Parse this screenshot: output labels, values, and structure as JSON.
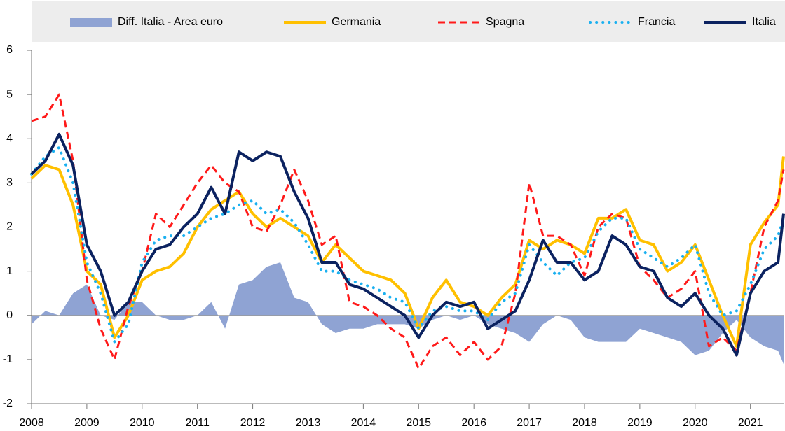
{
  "chart_data": {
    "type": "line",
    "x": [
      2008,
      2008.25,
      2008.5,
      2008.75,
      2009,
      2009.25,
      2009.5,
      2009.75,
      2010,
      2010.25,
      2010.5,
      2010.75,
      2011,
      2011.25,
      2011.5,
      2011.75,
      2012,
      2012.25,
      2012.5,
      2012.75,
      2013,
      2013.25,
      2013.5,
      2013.75,
      2014,
      2014.25,
      2014.5,
      2014.75,
      2015,
      2015.25,
      2015.5,
      2015.75,
      2016,
      2016.25,
      2016.5,
      2016.75,
      2017,
      2017.25,
      2017.5,
      2017.75,
      2018,
      2018.25,
      2018.5,
      2018.75,
      2019,
      2019.25,
      2019.5,
      2019.75,
      2020,
      2020.25,
      2020.5,
      2020.75,
      2021,
      2021.25,
      2021.5,
      2021.6
    ],
    "series": [
      {
        "name": "Diff. Italia - Area euro",
        "kind": "area",
        "color": "#8fa3d3",
        "values": [
          -0.2,
          0.1,
          0.0,
          0.5,
          0.7,
          0.0,
          -0.1,
          0.3,
          0.3,
          0.0,
          -0.1,
          -0.1,
          0.0,
          0.3,
          -0.3,
          0.7,
          0.8,
          1.1,
          1.2,
          0.4,
          0.3,
          -0.2,
          -0.4,
          -0.3,
          -0.3,
          -0.2,
          -0.2,
          -0.2,
          -0.3,
          -0.1,
          0.0,
          -0.1,
          0.0,
          -0.2,
          -0.3,
          -0.4,
          -0.6,
          -0.2,
          0.0,
          -0.1,
          -0.5,
          -0.6,
          -0.6,
          -0.6,
          -0.3,
          -0.4,
          -0.5,
          -0.6,
          -0.9,
          -0.8,
          -0.4,
          -0.1,
          -0.5,
          -0.7,
          -0.8,
          -1.1
        ]
      },
      {
        "name": "Germania",
        "kind": "line",
        "dash": "solid",
        "color": "#ffc000",
        "values": [
          3.1,
          3.4,
          3.3,
          2.5,
          1.0,
          0.7,
          -0.5,
          0.0,
          0.8,
          1.0,
          1.1,
          1.4,
          2.0,
          2.4,
          2.6,
          2.8,
          2.3,
          2.0,
          2.2,
          2.0,
          1.8,
          1.2,
          1.6,
          1.3,
          1.0,
          0.9,
          0.8,
          0.5,
          -0.3,
          0.4,
          0.8,
          0.3,
          0.2,
          0.0,
          0.4,
          0.7,
          1.7,
          1.5,
          1.7,
          1.6,
          1.4,
          2.2,
          2.2,
          2.4,
          1.7,
          1.6,
          1.0,
          1.2,
          1.6,
          0.8,
          0.0,
          -0.7,
          1.6,
          2.1,
          2.5,
          3.6
        ]
      },
      {
        "name": "Spagna",
        "kind": "line",
        "dash": "dashed",
        "color": "#ff1a1a",
        "values": [
          4.4,
          4.5,
          5.0,
          3.5,
          0.8,
          -0.3,
          -1.0,
          0.2,
          1.0,
          2.3,
          2.0,
          2.5,
          3.0,
          3.4,
          3.0,
          2.8,
          2.0,
          1.9,
          2.5,
          3.3,
          2.6,
          1.6,
          1.8,
          0.3,
          0.2,
          0.0,
          -0.3,
          -0.5,
          -1.2,
          -0.7,
          -0.5,
          -0.9,
          -0.6,
          -1.0,
          -0.7,
          0.5,
          3.0,
          1.8,
          1.8,
          1.6,
          0.9,
          2.0,
          2.3,
          2.2,
          1.1,
          0.8,
          0.4,
          0.6,
          1.0,
          -0.7,
          -0.5,
          -0.8,
          0.5,
          2.0,
          2.6,
          3.3
        ]
      },
      {
        "name": "Francia",
        "kind": "line",
        "dash": "dotted",
        "color": "#1ab0f0",
        "values": [
          3.2,
          3.6,
          3.8,
          3.0,
          1.2,
          0.5,
          -0.6,
          -0.2,
          1.2,
          1.7,
          1.8,
          1.8,
          2.0,
          2.2,
          2.3,
          2.5,
          2.6,
          2.3,
          2.4,
          2.1,
          1.6,
          1.0,
          1.0,
          0.8,
          0.7,
          0.6,
          0.4,
          0.3,
          -0.3,
          0.1,
          0.2,
          0.1,
          0.1,
          -0.1,
          0.3,
          0.5,
          1.6,
          1.2,
          0.9,
          1.2,
          1.3,
          1.9,
          2.2,
          2.2,
          1.5,
          1.3,
          1.1,
          1.3,
          1.6,
          0.5,
          0.0,
          0.1,
          0.7,
          1.5,
          1.8,
          2.2
        ]
      },
      {
        "name": "Italia",
        "kind": "line",
        "dash": "solid",
        "color": "#0b2260",
        "values": [
          3.2,
          3.5,
          4.1,
          3.4,
          1.6,
          1.0,
          0.0,
          0.3,
          1.0,
          1.5,
          1.6,
          2.0,
          2.3,
          2.9,
          2.3,
          3.7,
          3.5,
          3.7,
          3.6,
          2.8,
          2.2,
          1.2,
          1.2,
          0.7,
          0.6,
          0.4,
          0.2,
          0.0,
          -0.5,
          0.0,
          0.3,
          0.2,
          0.3,
          -0.3,
          -0.1,
          0.1,
          0.8,
          1.7,
          1.2,
          1.2,
          0.8,
          1.0,
          1.8,
          1.6,
          1.1,
          1.0,
          0.4,
          0.2,
          0.5,
          0.0,
          -0.3,
          -0.9,
          0.5,
          1.0,
          1.2,
          2.3
        ]
      }
    ],
    "xlim": [
      2008,
      2021.6
    ],
    "xticks": [
      2008,
      2009,
      2010,
      2011,
      2012,
      2013,
      2014,
      2015,
      2016,
      2017,
      2018,
      2019,
      2020,
      2021
    ],
    "ylim": [
      -2,
      6
    ],
    "yticks": [
      -2,
      -1,
      0,
      1,
      2,
      3,
      4,
      5,
      6
    ],
    "legend": "top"
  }
}
